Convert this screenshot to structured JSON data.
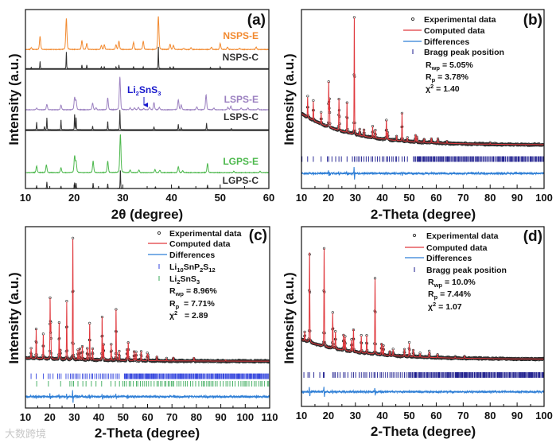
{
  "watermark": "大数跨境",
  "chart_data": [
    {
      "panel": "a",
      "type": "line",
      "label": "(a)",
      "xlabel_prefix": "2θ",
      "xlabel_suffix": " (degree)",
      "ylabel": "Intensity (a.u.)",
      "xlim": [
        10,
        60
      ],
      "ylim": [
        0,
        300
      ],
      "xticks": [
        10,
        20,
        30,
        40,
        50,
        60
      ],
      "series": [
        {
          "name": "NSPS-E",
          "color": "#F28A30",
          "offset": 233,
          "fwhm": 0.28,
          "noise": 0.8,
          "peaks": [
            [
              11.2,
              3
            ],
            [
              13,
              22
            ],
            [
              18.4,
              52
            ],
            [
              21.6,
              15
            ],
            [
              22.6,
              10
            ],
            [
              25.6,
              7
            ],
            [
              26.2,
              8
            ],
            [
              28.6,
              8
            ],
            [
              29.2,
              14
            ],
            [
              32.2,
              12
            ],
            [
              34.2,
              14
            ],
            [
              37.3,
              56
            ],
            [
              39.7,
              9
            ],
            [
              40.4,
              7
            ],
            [
              42.5,
              2
            ],
            [
              44,
              3
            ],
            [
              48.2,
              4
            ],
            [
              50,
              10
            ],
            [
              51.5,
              4
            ],
            [
              54,
              2
            ],
            [
              57.4,
              4
            ]
          ]
        },
        {
          "name": "NSPS-C",
          "color": "#333333",
          "offset": 201,
          "fwhm": 0.12,
          "noise": 0,
          "peaks": [
            [
              11.2,
              2
            ],
            [
              13,
              12
            ],
            [
              18.4,
              28
            ],
            [
              21.6,
              6
            ],
            [
              22.6,
              6
            ],
            [
              25.6,
              3
            ],
            [
              26.2,
              3
            ],
            [
              28.6,
              3
            ],
            [
              29.2,
              6
            ],
            [
              32.2,
              3
            ],
            [
              34.2,
              3
            ],
            [
              37.3,
              39
            ],
            [
              39.7,
              3
            ],
            [
              40.4,
              3
            ],
            [
              48,
              2
            ],
            [
              50,
              3
            ]
          ]
        },
        {
          "name": "LSPS-E",
          "color": "#9B80C0",
          "offset": 132,
          "fwhm": 0.28,
          "noise": 0.8,
          "peaks": [
            [
              12.3,
              3
            ],
            [
              14.4,
              9
            ],
            [
              17.3,
              8
            ],
            [
              20.1,
              20
            ],
            [
              20.4,
              15
            ],
            [
              23.8,
              11
            ],
            [
              24.5,
              3
            ],
            [
              26.9,
              20
            ],
            [
              29.4,
              55
            ],
            [
              31.5,
              3
            ],
            [
              32.4,
              3
            ],
            [
              33.2,
              4
            ],
            [
              34.3,
              2
            ],
            [
              35.5,
              4
            ],
            [
              36.4,
              12
            ],
            [
              37.5,
              4
            ],
            [
              41.4,
              17
            ],
            [
              42,
              8
            ],
            [
              45.2,
              5
            ],
            [
              47.1,
              25
            ],
            [
              48.7,
              3
            ],
            [
              51.6,
              4
            ],
            [
              52.2,
              6
            ],
            [
              54.3,
              3
            ],
            [
              55.7,
              3
            ],
            [
              57.8,
              2
            ]
          ]
        },
        {
          "name": "LSPS-C",
          "color": "#333333",
          "offset": 98.7,
          "fwhm": 0.12,
          "noise": 0,
          "peaks": [
            [
              12.3,
              13
            ],
            [
              13.9,
              5
            ],
            [
              14.4,
              20
            ],
            [
              17.3,
              17
            ],
            [
              20.1,
              27
            ],
            [
              20.4,
              20
            ],
            [
              23.8,
              6
            ],
            [
              26.9,
              14
            ],
            [
              29.4,
              33
            ],
            [
              36.4,
              5
            ],
            [
              41.4,
              9
            ],
            [
              42,
              3
            ],
            [
              47.2,
              11
            ],
            [
              52.3,
              2
            ]
          ]
        },
        {
          "name": "LGPS-E",
          "color": "#4CB84C",
          "offset": 26.7,
          "fwhm": 0.28,
          "noise": 0.8,
          "peaks": [
            [
              12.3,
              11
            ],
            [
              14.3,
              13
            ],
            [
              17.3,
              8
            ],
            [
              20.1,
              27
            ],
            [
              20.4,
              18
            ],
            [
              23.9,
              19
            ],
            [
              26.9,
              19
            ],
            [
              29.5,
              64
            ],
            [
              31.5,
              4
            ],
            [
              33.3,
              4
            ],
            [
              36.6,
              5
            ],
            [
              37.6,
              4
            ],
            [
              41.4,
              10
            ],
            [
              42.3,
              3
            ],
            [
              47.4,
              15
            ],
            [
              52.8,
              2
            ],
            [
              58.2,
              2
            ]
          ]
        },
        {
          "name": "LGPS-C",
          "color": "#333333",
          "offset": 0,
          "fwhm": 0.12,
          "noise": 0,
          "peaks": [
            [
              12.3,
              5
            ],
            [
              14.4,
              11
            ],
            [
              17.3,
              4
            ],
            [
              20.1,
              10
            ],
            [
              20.4,
              9
            ],
            [
              23.9,
              9
            ],
            [
              26.9,
              8
            ],
            [
              29.5,
              32
            ],
            [
              36.7,
              3
            ],
            [
              41.5,
              4
            ],
            [
              47.4,
              6
            ]
          ]
        }
      ],
      "annotation": {
        "parts": [
          "Li",
          "2",
          "SnS",
          "3"
        ],
        "x": 34.3,
        "color": "#1a1acc"
      }
    },
    {
      "panel": "b",
      "type": "scatter",
      "label": "(b)",
      "xlabel": "2-Theta (degree)",
      "ylabel": "Intensity (a.u.)",
      "xlim": [
        10,
        100
      ],
      "ylim": [
        -60,
        100
      ],
      "xticks": [
        10,
        20,
        30,
        40,
        50,
        60,
        70,
        80,
        90,
        100
      ],
      "legend": [
        "Experimental data",
        "Computed data",
        "Differences",
        "Bragg peak position"
      ],
      "stats": {
        "rwp": "= 5.05%",
        "rp": "= 3.78%",
        "chi2": "= 1.40"
      },
      "background": {
        "start": 7,
        "end": -21,
        "decay": 18
      },
      "fwhm": 0.2,
      "peaks": [
        [
          12.3,
          18
        ],
        [
          14.4,
          17
        ],
        [
          17.3,
          10
        ],
        [
          20.1,
          40
        ],
        [
          20.4,
          25
        ],
        [
          23.9,
          27
        ],
        [
          24.1,
          10
        ],
        [
          26.9,
          27
        ],
        [
          29.6,
          105
        ],
        [
          31.6,
          6
        ],
        [
          33.2,
          6
        ],
        [
          36.4,
          10
        ],
        [
          37.4,
          7
        ],
        [
          41.5,
          17
        ],
        [
          42,
          6
        ],
        [
          45.3,
          4
        ],
        [
          47.3,
          25
        ],
        [
          49.3,
          3
        ],
        [
          52.3,
          6
        ],
        [
          52.8,
          5
        ],
        [
          55.5,
          3
        ],
        [
          58.2,
          4
        ],
        [
          60.6,
          4
        ],
        [
          64,
          2
        ],
        [
          80,
          1
        ]
      ],
      "diff_level": -46.5,
      "bragg": [
        {
          "name": "Bragg peak position",
          "color": "#1a1a8c",
          "level": -33.7,
          "positions": [
            10.2,
            12.3,
            14.4,
            17.3,
            19.6,
            20.1,
            21.3,
            22.7,
            23.9,
            24.8,
            26.9,
            28.9,
            29.6,
            30.3,
            31,
            31.6,
            32.3,
            33.2,
            34,
            34.9,
            35.8,
            36.4,
            37.4,
            38.2,
            39.1,
            40,
            40.6,
            41.5,
            42,
            42.6,
            43.4,
            44,
            44.9,
            45.3,
            46.1,
            47.3,
            48.2,
            49.3
          ],
          "dense_from": 51.5,
          "dense_step": 0.35
        }
      ]
    },
    {
      "panel": "c",
      "type": "scatter",
      "label": "(c)",
      "xlabel": "2-Theta (degree)",
      "ylabel": "Intensity (a.u.)",
      "xlim": [
        10,
        110
      ],
      "ylim": [
        -60,
        100
      ],
      "xticks": [
        10,
        20,
        30,
        40,
        50,
        60,
        70,
        80,
        90,
        100,
        110
      ],
      "legend": [
        "Experimental data",
        "Computed data",
        "Differences"
      ],
      "phases": [
        {
          "parts": [
            "Li",
            "10",
            "SnP",
            "2",
            "S",
            "12"
          ]
        },
        {
          "parts": [
            "Li",
            "2",
            "SnS",
            "3"
          ]
        }
      ],
      "stats": {
        "rwp": "= 8.96%",
        "rp": "= 7.71%",
        "chi2": "= 2.89"
      },
      "background": {
        "start": -15.8,
        "end": -18.8,
        "decay": 30
      },
      "fwhm": 0.22,
      "peaks": [
        [
          12.3,
          8
        ],
        [
          14.4,
          26
        ],
        [
          17.3,
          21
        ],
        [
          20.1,
          53
        ],
        [
          20.4,
          30
        ],
        [
          23.8,
          32
        ],
        [
          24.3,
          8
        ],
        [
          26.9,
          51
        ],
        [
          29.4,
          107
        ],
        [
          31.5,
          8
        ],
        [
          32.3,
          10
        ],
        [
          33.3,
          12
        ],
        [
          35.3,
          10
        ],
        [
          36.3,
          32
        ],
        [
          37.5,
          10
        ],
        [
          41.4,
          38
        ],
        [
          42,
          14
        ],
        [
          45.1,
          14
        ],
        [
          47.1,
          45
        ],
        [
          48.4,
          8
        ],
        [
          51.6,
          10
        ],
        [
          52.1,
          16
        ],
        [
          54.5,
          8
        ],
        [
          55.3,
          7
        ],
        [
          57.4,
          8
        ],
        [
          59.9,
          6
        ],
        [
          60.2,
          5
        ],
        [
          63.8,
          4
        ],
        [
          67.8,
          2
        ],
        [
          70.6,
          3
        ],
        [
          79,
          3
        ],
        [
          92,
          1
        ]
      ],
      "diff_level": -50,
      "bragg": [
        {
          "name": "Li10SnP2S12",
          "color": "#3344dd",
          "level": -32,
          "positions": [
            12.3,
            14.4,
            17.3,
            19.3,
            20.1,
            21.3,
            23.2,
            23.8,
            24.6,
            26.6,
            27.5,
            28.4,
            29.1,
            29.6,
            30.3,
            31,
            31.5,
            32.3,
            33.3,
            34,
            34.7,
            35.3,
            36.3,
            37.1,
            37.5,
            38.4,
            39.2,
            40,
            40.7,
            41.4,
            42,
            42.6,
            43.4,
            44,
            44.8,
            45.5,
            46.1,
            47.1,
            47.7,
            48.4
          ],
          "dense_from": 50.5,
          "dense_step": 0.33
        },
        {
          "name": "Li2SnS3",
          "color": "#3aaa5a",
          "level": -38.6,
          "positions": [
            14.6,
            19.4,
            24.4,
            28.2,
            29,
            29.7,
            31.5,
            33.5,
            34.8,
            37,
            38.9,
            41.2,
            45,
            46.8
          ],
          "dense_from": 48.5,
          "dense_step": 0.9
        }
      ]
    },
    {
      "panel": "d",
      "type": "scatter",
      "label": "(d)",
      "xlabel": "2-Theta (degree)",
      "ylabel": "Intensity (a.u.)",
      "xlim": [
        10,
        100
      ],
      "ylim": [
        -60,
        100
      ],
      "xticks": [
        10,
        20,
        30,
        40,
        50,
        60,
        70,
        80,
        90,
        100
      ],
      "legend": [
        "Experimental data",
        "Computed data",
        "Differences",
        "Bragg peak position"
      ],
      "stats": {
        "rwp": "= 10.0%",
        "rp": "= 7.44%",
        "chi2": "= 1.07"
      },
      "background": {
        "start": -0.5,
        "end": -18,
        "decay": 20
      },
      "fwhm": 0.22,
      "peaks": [
        [
          11.2,
          8
        ],
        [
          13,
          80
        ],
        [
          18.4,
          87
        ],
        [
          21.6,
          31
        ],
        [
          22.6,
          15
        ],
        [
          25.6,
          14
        ],
        [
          26.2,
          12
        ],
        [
          28.6,
          10
        ],
        [
          29.3,
          20
        ],
        [
          32.2,
          15
        ],
        [
          34.2,
          16
        ],
        [
          37.3,
          67
        ],
        [
          39.7,
          10
        ],
        [
          40.4,
          8
        ],
        [
          42.8,
          4
        ],
        [
          44,
          5
        ],
        [
          48.2,
          6
        ],
        [
          50,
          12
        ],
        [
          51.5,
          6
        ],
        [
          54,
          3
        ],
        [
          57.4,
          5
        ],
        [
          60.5,
          3
        ],
        [
          67,
          1
        ],
        [
          70.5,
          2
        ]
      ],
      "diff_level": -47,
      "bragg": [
        {
          "name": "Bragg peak position",
          "color": "#1a1a8c",
          "level": -32,
          "positions": [
            10.9,
            12.4,
            13,
            14.6,
            16.8,
            18.1,
            18.4,
            21.6,
            22.1,
            22.6,
            23.5,
            24.3,
            25.6,
            26.2,
            27.2,
            28.6,
            29.3,
            30.1,
            31.4,
            32.2,
            33,
            33.6,
            34.2,
            35.3,
            36.1,
            36.9,
            37.3,
            38.2,
            39.2,
            39.7,
            40.4,
            41.2,
            42,
            42.8,
            43.4,
            44,
            44.7,
            45.4,
            46.1,
            46.8,
            47.5,
            48.2,
            48.9,
            49.6
          ],
          "dense_from": 50,
          "dense_step": 0.32
        }
      ]
    }
  ]
}
